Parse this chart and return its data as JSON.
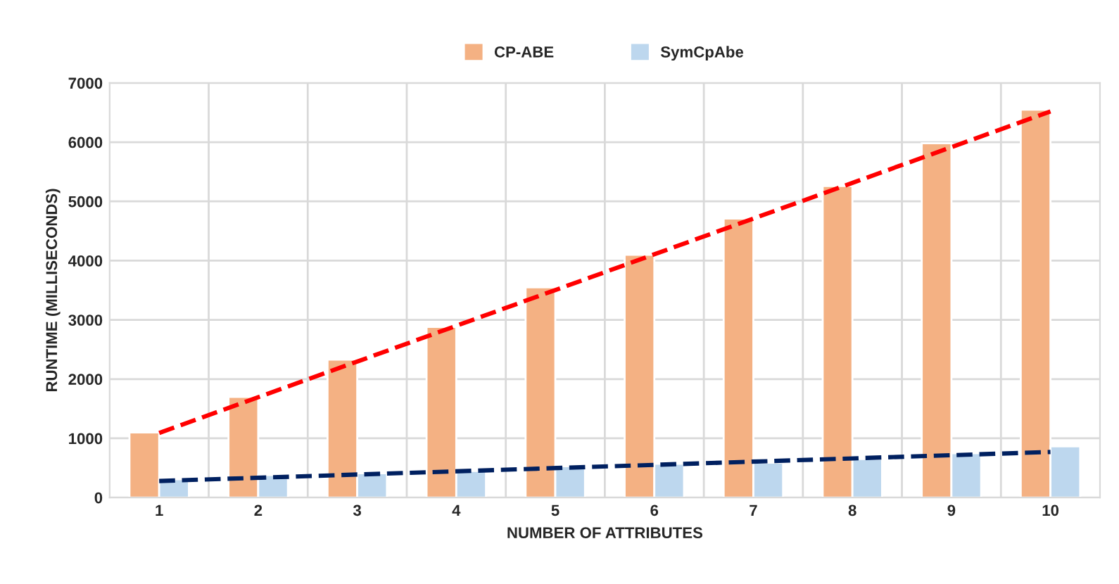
{
  "chart_data": {
    "type": "bar",
    "xlabel": "NUMBER OF ATTRIBUTES",
    "ylabel": "RUNTIME (MILLISECONDS)",
    "categories": [
      "1",
      "2",
      "3",
      "4",
      "5",
      "6",
      "7",
      "8",
      "9",
      "10"
    ],
    "series": [
      {
        "name": "CP-ABE",
        "color": "#f4b183",
        "values": [
          1100,
          1700,
          2330,
          2880,
          3550,
          4100,
          4710,
          5260,
          5980,
          6550
        ]
      },
      {
        "name": "SymCpAbe",
        "color": "#bdd7ee",
        "values": [
          310,
          380,
          410,
          450,
          530,
          570,
          590,
          650,
          750,
          865
        ]
      },
      {
        "type": "line",
        "color": "#ff0000",
        "line_style": "dashed",
        "x": [
          "1",
          "10"
        ],
        "values": [
          1090,
          6520
        ]
      },
      {
        "type": "line",
        "color": "#002060",
        "line_style": "dashed",
        "x": [
          "1",
          "10"
        ],
        "values": [
          280,
          770
        ]
      }
    ],
    "ylim": [
      0,
      7000
    ],
    "yticks": [
      0,
      1000,
      2000,
      3000,
      4000,
      5000,
      6000,
      7000
    ],
    "grid": true,
    "legend": "top"
  }
}
